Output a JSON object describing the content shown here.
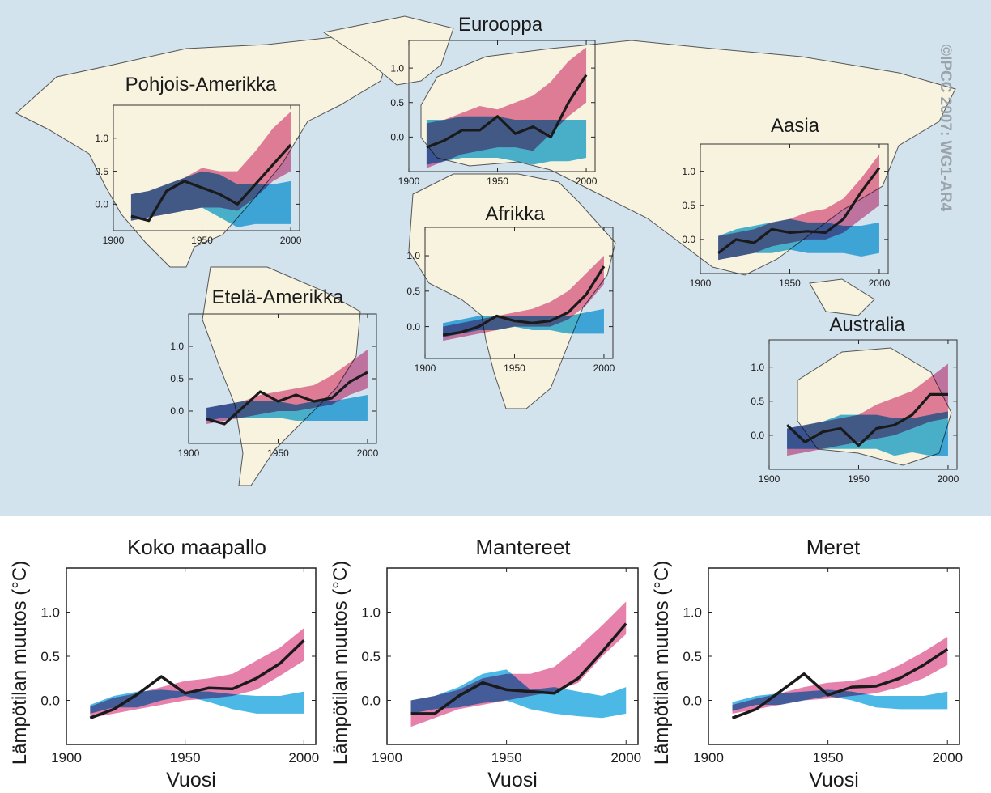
{
  "colors": {
    "ocean": "#d3e3ee",
    "land": "#f7f3df",
    "coast": "#555555",
    "observed": "#1a1a1a",
    "natural_band": "#1ea6e0",
    "combined_band": "#e26b9c",
    "overlap": "#7a62a8"
  },
  "copyright": "©IPCC 2007: WG1-AR4",
  "chart_data": [
    {
      "type": "line",
      "title": "Pohjois-Amerikka",
      "x": [
        1910,
        1920,
        1930,
        1940,
        1950,
        1960,
        1970,
        1980,
        1990,
        2000
      ],
      "observed": [
        -0.18,
        -0.25,
        0.2,
        0.35,
        0.25,
        0.15,
        0.0,
        0.3,
        0.6,
        0.9
      ],
      "series": [
        {
          "values": [
            [
              -0.25,
              0.15
            ],
            [
              -0.2,
              0.2
            ],
            [
              -0.15,
              0.3
            ],
            [
              -0.1,
              0.4
            ],
            [
              -0.05,
              0.55
            ],
            [
              -0.05,
              0.5
            ],
            [
              -0.1,
              0.5
            ],
            [
              0.1,
              0.8
            ],
            [
              0.35,
              1.15
            ],
            [
              0.5,
              1.4
            ]
          ]
        },
        {
          "values": [
            [
              -0.25,
              0.15
            ],
            [
              -0.2,
              0.2
            ],
            [
              -0.15,
              0.3
            ],
            [
              -0.1,
              0.4
            ],
            [
              -0.05,
              0.5
            ],
            [
              -0.2,
              0.45
            ],
            [
              -0.35,
              0.3
            ],
            [
              -0.3,
              0.3
            ],
            [
              -0.3,
              0.3
            ],
            [
              -0.3,
              0.35
            ]
          ]
        }
      ],
      "xticks": [
        "1900",
        "1950",
        "2000"
      ],
      "yticks": [
        "0.0",
        "0.5",
        "1.0"
      ],
      "xlim": [
        1900,
        2005
      ],
      "ylim": [
        -0.4,
        1.5
      ]
    },
    {
      "type": "line",
      "title": "Eurooppa",
      "x": [
        1910,
        1920,
        1930,
        1940,
        1950,
        1960,
        1970,
        1980,
        1990,
        2000
      ],
      "observed": [
        -0.15,
        -0.05,
        0.1,
        0.1,
        0.3,
        0.05,
        0.15,
        0.0,
        0.5,
        0.9
      ],
      "series": [
        {
          "values": [
            [
              -0.45,
              0.2
            ],
            [
              -0.35,
              0.25
            ],
            [
              -0.25,
              0.35
            ],
            [
              -0.2,
              0.45
            ],
            [
              -0.15,
              0.4
            ],
            [
              -0.15,
              0.5
            ],
            [
              -0.2,
              0.6
            ],
            [
              0.05,
              0.8
            ],
            [
              0.3,
              1.1
            ],
            [
              0.5,
              1.3
            ]
          ]
        },
        {
          "values": [
            [
              -0.4,
              0.25
            ],
            [
              -0.35,
              0.25
            ],
            [
              -0.3,
              0.3
            ],
            [
              -0.3,
              0.3
            ],
            [
              -0.3,
              0.3
            ],
            [
              -0.35,
              0.25
            ],
            [
              -0.4,
              0.25
            ],
            [
              -0.35,
              0.25
            ],
            [
              -0.35,
              0.25
            ],
            [
              -0.3,
              0.25
            ]
          ]
        }
      ],
      "xticks": [
        "1900",
        "1950",
        "2000"
      ],
      "yticks": [
        "0.0",
        "0.5",
        "1.0"
      ],
      "xlim": [
        1900,
        2005
      ],
      "ylim": [
        -0.5,
        1.4
      ]
    },
    {
      "type": "line",
      "title": "Aasia",
      "x": [
        1910,
        1920,
        1930,
        1940,
        1950,
        1960,
        1970,
        1980,
        1990,
        2000
      ],
      "observed": [
        -0.2,
        0.0,
        -0.05,
        0.15,
        0.1,
        0.12,
        0.1,
        0.3,
        0.7,
        1.05
      ],
      "series": [
        {
          "values": [
            [
              -0.3,
              0.05
            ],
            [
              -0.25,
              0.1
            ],
            [
              -0.2,
              0.15
            ],
            [
              -0.1,
              0.25
            ],
            [
              -0.05,
              0.3
            ],
            [
              0.0,
              0.4
            ],
            [
              0.0,
              0.45
            ],
            [
              0.1,
              0.6
            ],
            [
              0.3,
              0.9
            ],
            [
              0.5,
              1.25
            ]
          ]
        },
        {
          "values": [
            [
              -0.3,
              0.05
            ],
            [
              -0.25,
              0.15
            ],
            [
              -0.2,
              0.2
            ],
            [
              -0.2,
              0.25
            ],
            [
              -0.15,
              0.3
            ],
            [
              -0.2,
              0.25
            ],
            [
              -0.2,
              0.25
            ],
            [
              -0.2,
              0.2
            ],
            [
              -0.25,
              0.2
            ],
            [
              -0.2,
              0.25
            ]
          ]
        }
      ],
      "xticks": [
        "1900",
        "1950",
        "2000"
      ],
      "yticks": [
        "0.0",
        "0.5",
        "1.0"
      ],
      "xlim": [
        1900,
        2005
      ],
      "ylim": [
        -0.5,
        1.4
      ]
    },
    {
      "type": "line",
      "title": "Afrikka",
      "x": [
        1910,
        1920,
        1930,
        1940,
        1950,
        1960,
        1970,
        1980,
        1990,
        2000
      ],
      "observed": [
        -0.12,
        -0.08,
        0.0,
        0.15,
        0.08,
        0.05,
        0.08,
        0.2,
        0.45,
        0.85
      ],
      "series": [
        {
          "values": [
            [
              -0.2,
              0.0
            ],
            [
              -0.15,
              0.05
            ],
            [
              -0.1,
              0.1
            ],
            [
              -0.05,
              0.15
            ],
            [
              0.0,
              0.2
            ],
            [
              0.0,
              0.25
            ],
            [
              0.0,
              0.35
            ],
            [
              0.1,
              0.5
            ],
            [
              0.3,
              0.75
            ],
            [
              0.6,
              1.0
            ]
          ]
        },
        {
          "values": [
            [
              -0.15,
              0.05
            ],
            [
              -0.1,
              0.1
            ],
            [
              -0.05,
              0.15
            ],
            [
              -0.05,
              0.15
            ],
            [
              0.0,
              0.15
            ],
            [
              -0.05,
              0.15
            ],
            [
              -0.05,
              0.15
            ],
            [
              -0.1,
              0.15
            ],
            [
              -0.1,
              0.2
            ],
            [
              -0.1,
              0.25
            ]
          ]
        }
      ],
      "xticks": [
        "1900",
        "1950",
        "2000"
      ],
      "yticks": [
        "0.0",
        "0.5",
        "1.0"
      ],
      "xlim": [
        1900,
        2005
      ],
      "ylim": [
        -0.45,
        1.4
      ]
    },
    {
      "type": "line",
      "title": "Etelä-Amerikka",
      "x": [
        1910,
        1920,
        1930,
        1940,
        1950,
        1960,
        1970,
        1980,
        1990,
        2000
      ],
      "observed": [
        -0.12,
        -0.2,
        0.05,
        0.3,
        0.15,
        0.25,
        0.15,
        0.2,
        0.45,
        0.6
      ],
      "series": [
        {
          "values": [
            [
              -0.2,
              0.05
            ],
            [
              -0.15,
              0.1
            ],
            [
              -0.1,
              0.15
            ],
            [
              -0.05,
              0.25
            ],
            [
              0.0,
              0.3
            ],
            [
              0.0,
              0.35
            ],
            [
              0.05,
              0.4
            ],
            [
              0.1,
              0.55
            ],
            [
              0.25,
              0.75
            ],
            [
              0.35,
              0.95
            ]
          ]
        },
        {
          "values": [
            [
              -0.15,
              0.05
            ],
            [
              -0.1,
              0.1
            ],
            [
              -0.1,
              0.15
            ],
            [
              -0.1,
              0.15
            ],
            [
              -0.1,
              0.15
            ],
            [
              -0.15,
              0.1
            ],
            [
              -0.15,
              0.15
            ],
            [
              -0.15,
              0.15
            ],
            [
              -0.15,
              0.2
            ],
            [
              -0.15,
              0.25
            ]
          ]
        }
      ],
      "xticks": [
        "1900",
        "1950",
        "2000"
      ],
      "yticks": [
        "0.0",
        "0.5",
        "1.0"
      ],
      "xlim": [
        1900,
        2005
      ],
      "ylim": [
        -0.5,
        1.5
      ]
    },
    {
      "type": "line",
      "title": "Australia",
      "x": [
        1910,
        1920,
        1930,
        1940,
        1950,
        1960,
        1970,
        1980,
        1990,
        2000
      ],
      "observed": [
        0.15,
        -0.1,
        0.05,
        0.1,
        -0.15,
        0.1,
        0.15,
        0.3,
        0.6,
        0.6
      ],
      "series": [
        {
          "values": [
            [
              -0.3,
              0.1
            ],
            [
              -0.25,
              0.15
            ],
            [
              -0.2,
              0.2
            ],
            [
              -0.15,
              0.25
            ],
            [
              -0.1,
              0.3
            ],
            [
              -0.05,
              0.45
            ],
            [
              0.0,
              0.55
            ],
            [
              0.1,
              0.65
            ],
            [
              0.2,
              0.85
            ],
            [
              0.25,
              1.05
            ]
          ]
        },
        {
          "values": [
            [
              -0.2,
              0.1
            ],
            [
              -0.2,
              0.15
            ],
            [
              -0.2,
              0.2
            ],
            [
              -0.2,
              0.3
            ],
            [
              -0.2,
              0.3
            ],
            [
              -0.2,
              0.3
            ],
            [
              -0.3,
              0.25
            ],
            [
              -0.25,
              0.25
            ],
            [
              -0.3,
              0.3
            ],
            [
              -0.3,
              0.35
            ]
          ]
        }
      ],
      "xticks": [
        "1900",
        "1950",
        "2000"
      ],
      "yticks": [
        "0.0",
        "0.5",
        "1.0"
      ],
      "xlim": [
        1900,
        2005
      ],
      "ylim": [
        -0.5,
        1.4
      ]
    },
    {
      "type": "line",
      "title": "Koko maapallo",
      "xlabel": "Vuosi",
      "ylabel": "Lämpötilan muutos (°C)",
      "x": [
        1910,
        1920,
        1930,
        1940,
        1950,
        1960,
        1970,
        1980,
        1990,
        2000
      ],
      "observed": [
        -0.2,
        -0.1,
        0.07,
        0.27,
        0.08,
        0.14,
        0.13,
        0.25,
        0.42,
        0.68
      ],
      "series": [
        {
          "values": [
            [
              -0.2,
              -0.07
            ],
            [
              -0.15,
              0.03
            ],
            [
              -0.1,
              0.08
            ],
            [
              -0.05,
              0.15
            ],
            [
              0.0,
              0.22
            ],
            [
              0.02,
              0.25
            ],
            [
              0.05,
              0.3
            ],
            [
              0.12,
              0.45
            ],
            [
              0.28,
              0.6
            ],
            [
              0.45,
              0.82
            ]
          ]
        },
        {
          "values": [
            [
              -0.15,
              -0.05
            ],
            [
              -0.08,
              0.05
            ],
            [
              -0.08,
              0.1
            ],
            [
              0.0,
              0.12
            ],
            [
              0.05,
              0.1
            ],
            [
              -0.02,
              0.1
            ],
            [
              -0.1,
              0.07
            ],
            [
              -0.15,
              0.05
            ],
            [
              -0.15,
              0.05
            ],
            [
              -0.15,
              0.1
            ]
          ]
        }
      ],
      "xticks": [
        "1900",
        "1950",
        "2000"
      ],
      "yticks": [
        "0.0",
        "0.5",
        "1.0"
      ],
      "xlim": [
        1900,
        2005
      ],
      "ylim": [
        -0.5,
        1.5
      ]
    },
    {
      "type": "line",
      "title": "Mantereet",
      "xlabel": "Vuosi",
      "ylabel": "Lämpötilan muutos (°C)",
      "x": [
        1910,
        1920,
        1930,
        1940,
        1950,
        1960,
        1970,
        1980,
        1990,
        2000
      ],
      "observed": [
        -0.15,
        -0.15,
        0.05,
        0.2,
        0.12,
        0.1,
        0.08,
        0.25,
        0.55,
        0.87
      ],
      "series": [
        {
          "values": [
            [
              -0.3,
              0.0
            ],
            [
              -0.2,
              0.05
            ],
            [
              -0.1,
              0.12
            ],
            [
              -0.05,
              0.25
            ],
            [
              0.0,
              0.3
            ],
            [
              0.05,
              0.3
            ],
            [
              0.1,
              0.38
            ],
            [
              0.2,
              0.6
            ],
            [
              0.5,
              0.85
            ],
            [
              0.75,
              1.12
            ]
          ]
        },
        {
          "values": [
            [
              -0.15,
              0.0
            ],
            [
              -0.1,
              0.05
            ],
            [
              -0.08,
              0.15
            ],
            [
              -0.03,
              0.3
            ],
            [
              0.0,
              0.35
            ],
            [
              -0.1,
              0.12
            ],
            [
              -0.15,
              0.15
            ],
            [
              -0.18,
              0.1
            ],
            [
              -0.2,
              0.05
            ],
            [
              -0.15,
              0.15
            ]
          ]
        }
      ],
      "xticks": [
        "1900",
        "1950",
        "2000"
      ],
      "yticks": [
        "0.0",
        "0.5",
        "1.0"
      ],
      "xlim": [
        1900,
        2005
      ],
      "ylim": [
        -0.5,
        1.5
      ]
    },
    {
      "type": "line",
      "title": "Meret",
      "xlabel": "Vuosi",
      "ylabel": "Lämpötilan muutos (°C)",
      "x": [
        1910,
        1920,
        1930,
        1940,
        1950,
        1960,
        1970,
        1980,
        1990,
        2000
      ],
      "observed": [
        -0.2,
        -0.1,
        0.1,
        0.3,
        0.06,
        0.15,
        0.16,
        0.25,
        0.4,
        0.58
      ],
      "series": [
        {
          "values": [
            [
              -0.15,
              -0.05
            ],
            [
              -0.1,
              0.02
            ],
            [
              -0.05,
              0.08
            ],
            [
              0.0,
              0.15
            ],
            [
              0.02,
              0.2
            ],
            [
              0.05,
              0.22
            ],
            [
              0.08,
              0.28
            ],
            [
              0.15,
              0.4
            ],
            [
              0.25,
              0.55
            ],
            [
              0.4,
              0.72
            ]
          ]
        },
        {
          "values": [
            [
              -0.12,
              -0.02
            ],
            [
              -0.05,
              0.05
            ],
            [
              -0.05,
              0.08
            ],
            [
              0.0,
              0.1
            ],
            [
              0.05,
              0.12
            ],
            [
              0.0,
              0.1
            ],
            [
              -0.08,
              0.05
            ],
            [
              -0.1,
              0.05
            ],
            [
              -0.1,
              0.05
            ],
            [
              -0.1,
              0.1
            ]
          ]
        }
      ],
      "xticks": [
        "1900",
        "1950",
        "2000"
      ],
      "yticks": [
        "0.0",
        "0.5",
        "1.0"
      ],
      "xlim": [
        1900,
        2005
      ],
      "ylim": [
        -0.5,
        1.5
      ]
    }
  ]
}
